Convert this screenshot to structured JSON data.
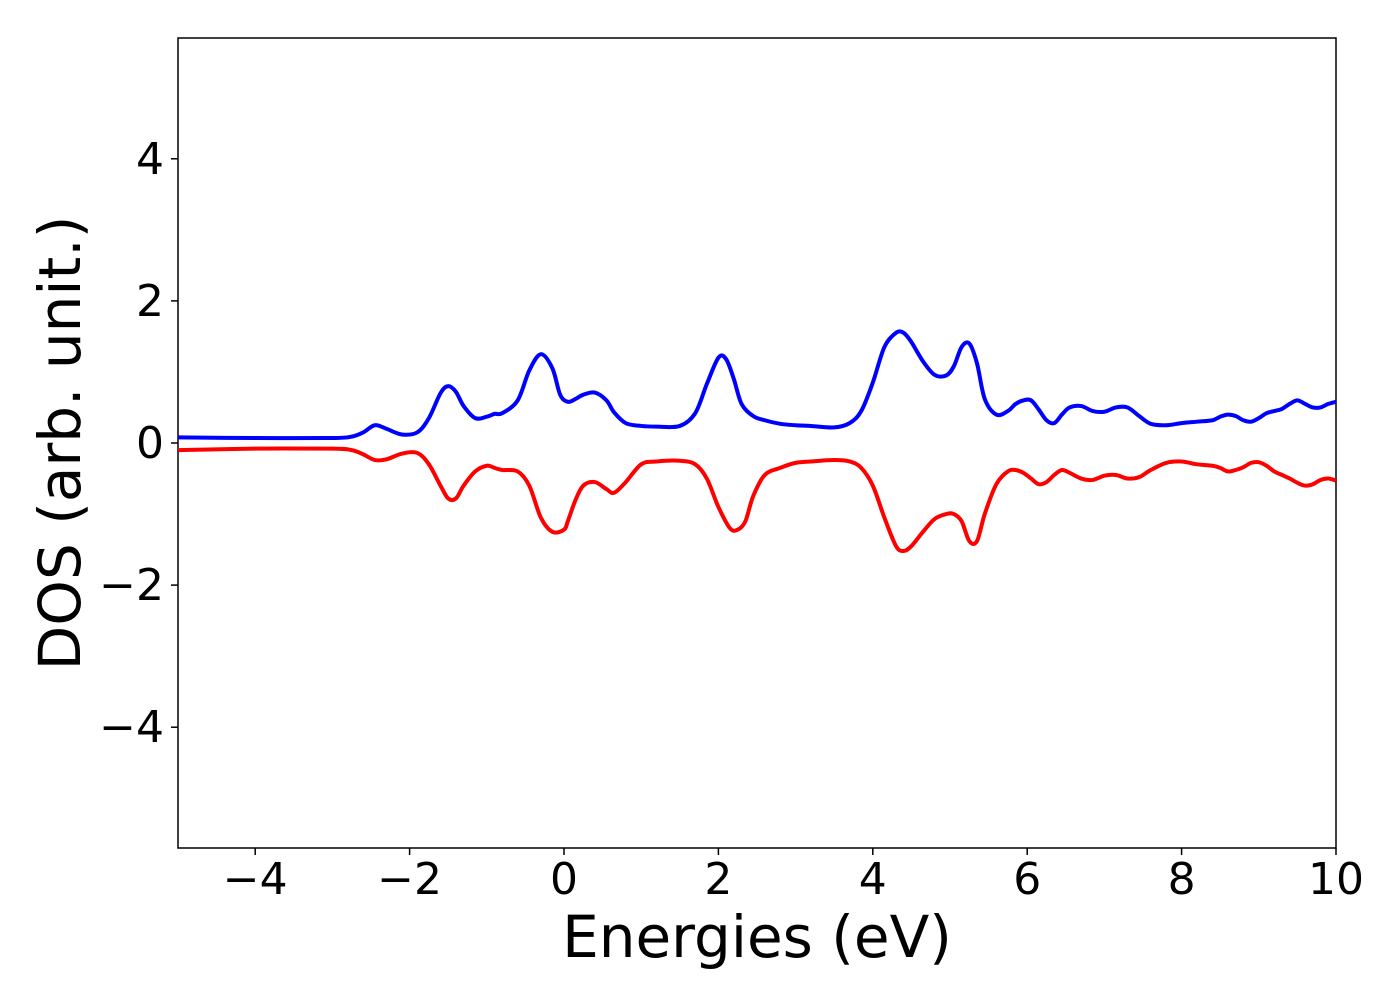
{
  "chart_data": {
    "type": "line",
    "title": "",
    "xlabel": "Energies (eV)",
    "ylabel": "DOS (arb. unit.)",
    "xlim": [
      -5,
      10
    ],
    "ylim": [
      -5.7,
      5.7
    ],
    "xticks": [
      -4,
      -2,
      0,
      2,
      4,
      6,
      8,
      10
    ],
    "xtick_labels": [
      "−4",
      "−2",
      "0",
      "2",
      "4",
      "6",
      "8",
      "10"
    ],
    "yticks": [
      -4,
      -2,
      0,
      2,
      4
    ],
    "ytick_labels": [
      "−4",
      "−2",
      "0",
      "2",
      "4"
    ],
    "grid": false,
    "legend": "none",
    "series": [
      {
        "color": "#0000ff",
        "x": [
          -5.0,
          -4.0,
          -3.0,
          -2.75,
          -2.6,
          -2.45,
          -2.3,
          -2.1,
          -1.9,
          -1.75,
          -1.6,
          -1.5,
          -1.4,
          -1.3,
          -1.15,
          -1.0,
          -0.9,
          -0.8,
          -0.6,
          -0.45,
          -0.3,
          -0.15,
          -0.05,
          0.05,
          0.15,
          0.25,
          0.4,
          0.55,
          0.65,
          0.8,
          1.0,
          1.2,
          1.5,
          1.7,
          1.85,
          2.0,
          2.1,
          2.2,
          2.3,
          2.45,
          2.6,
          2.8,
          3.0,
          3.2,
          3.5,
          3.7,
          3.85,
          4.0,
          4.15,
          4.3,
          4.4,
          4.5,
          4.65,
          4.8,
          4.95,
          5.05,
          5.15,
          5.25,
          5.35,
          5.45,
          5.6,
          5.75,
          5.85,
          5.95,
          6.05,
          6.15,
          6.25,
          6.35,
          6.45,
          6.55,
          6.7,
          6.85,
          7.0,
          7.15,
          7.3,
          7.45,
          7.6,
          7.8,
          8.0,
          8.2,
          8.4,
          8.5,
          8.6,
          8.7,
          8.8,
          8.9,
          9.0,
          9.1,
          9.2,
          9.3,
          9.4,
          9.5,
          9.6,
          9.7,
          9.8,
          9.9,
          10.0
        ],
        "y": [
          0.08,
          0.07,
          0.07,
          0.09,
          0.15,
          0.25,
          0.2,
          0.12,
          0.15,
          0.35,
          0.7,
          0.8,
          0.72,
          0.52,
          0.35,
          0.37,
          0.41,
          0.42,
          0.6,
          1.02,
          1.25,
          1.05,
          0.68,
          0.58,
          0.62,
          0.68,
          0.71,
          0.6,
          0.43,
          0.28,
          0.24,
          0.23,
          0.24,
          0.42,
          0.83,
          1.2,
          1.18,
          0.9,
          0.55,
          0.38,
          0.32,
          0.27,
          0.25,
          0.24,
          0.22,
          0.28,
          0.45,
          0.85,
          1.35,
          1.55,
          1.55,
          1.42,
          1.15,
          0.96,
          0.95,
          1.08,
          1.35,
          1.4,
          1.12,
          0.62,
          0.4,
          0.45,
          0.55,
          0.6,
          0.6,
          0.47,
          0.32,
          0.28,
          0.4,
          0.5,
          0.52,
          0.45,
          0.44,
          0.5,
          0.5,
          0.38,
          0.27,
          0.25,
          0.28,
          0.3,
          0.32,
          0.37,
          0.4,
          0.38,
          0.32,
          0.3,
          0.35,
          0.42,
          0.45,
          0.48,
          0.55,
          0.6,
          0.55,
          0.5,
          0.5,
          0.55,
          0.58
        ]
      },
      {
        "color": "#ff0000",
        "x": [
          -5.0,
          -4.0,
          -3.0,
          -2.75,
          -2.6,
          -2.45,
          -2.3,
          -2.1,
          -1.9,
          -1.75,
          -1.6,
          -1.5,
          -1.4,
          -1.3,
          -1.15,
          -1.0,
          -0.9,
          -0.8,
          -0.6,
          -0.45,
          -0.3,
          -0.15,
          0.0,
          0.05,
          0.15,
          0.25,
          0.4,
          0.55,
          0.65,
          0.8,
          1.0,
          1.2,
          1.5,
          1.7,
          1.85,
          2.0,
          2.15,
          2.25,
          2.35,
          2.45,
          2.6,
          2.8,
          3.0,
          3.2,
          3.5,
          3.7,
          3.85,
          4.0,
          4.15,
          4.3,
          4.4,
          4.5,
          4.65,
          4.8,
          4.95,
          5.05,
          5.15,
          5.25,
          5.35,
          5.45,
          5.6,
          5.75,
          5.85,
          5.95,
          6.05,
          6.15,
          6.25,
          6.35,
          6.45,
          6.55,
          6.7,
          6.85,
          7.0,
          7.15,
          7.3,
          7.45,
          7.6,
          7.8,
          8.0,
          8.2,
          8.4,
          8.5,
          8.6,
          8.7,
          8.8,
          8.9,
          9.0,
          9.1,
          9.2,
          9.3,
          9.4,
          9.5,
          9.6,
          9.7,
          9.8,
          9.9,
          10.0
        ],
        "y": [
          -0.1,
          -0.08,
          -0.08,
          -0.1,
          -0.16,
          -0.24,
          -0.23,
          -0.15,
          -0.14,
          -0.3,
          -0.6,
          -0.78,
          -0.78,
          -0.6,
          -0.4,
          -0.32,
          -0.35,
          -0.38,
          -0.4,
          -0.6,
          -1.05,
          -1.25,
          -1.22,
          -1.1,
          -0.8,
          -0.6,
          -0.55,
          -0.65,
          -0.7,
          -0.55,
          -0.3,
          -0.26,
          -0.25,
          -0.3,
          -0.5,
          -0.9,
          -1.2,
          -1.22,
          -1.1,
          -0.75,
          -0.45,
          -0.35,
          -0.28,
          -0.26,
          -0.24,
          -0.26,
          -0.35,
          -0.6,
          -1.05,
          -1.45,
          -1.52,
          -1.45,
          -1.25,
          -1.07,
          -1.0,
          -1.0,
          -1.1,
          -1.38,
          -1.38,
          -1.0,
          -0.58,
          -0.4,
          -0.38,
          -0.42,
          -0.5,
          -0.58,
          -0.55,
          -0.45,
          -0.38,
          -0.42,
          -0.5,
          -0.52,
          -0.46,
          -0.45,
          -0.5,
          -0.48,
          -0.38,
          -0.28,
          -0.26,
          -0.3,
          -0.32,
          -0.35,
          -0.4,
          -0.38,
          -0.34,
          -0.28,
          -0.27,
          -0.32,
          -0.4,
          -0.45,
          -0.5,
          -0.56,
          -0.6,
          -0.58,
          -0.52,
          -0.5,
          -0.53
        ]
      }
    ]
  }
}
